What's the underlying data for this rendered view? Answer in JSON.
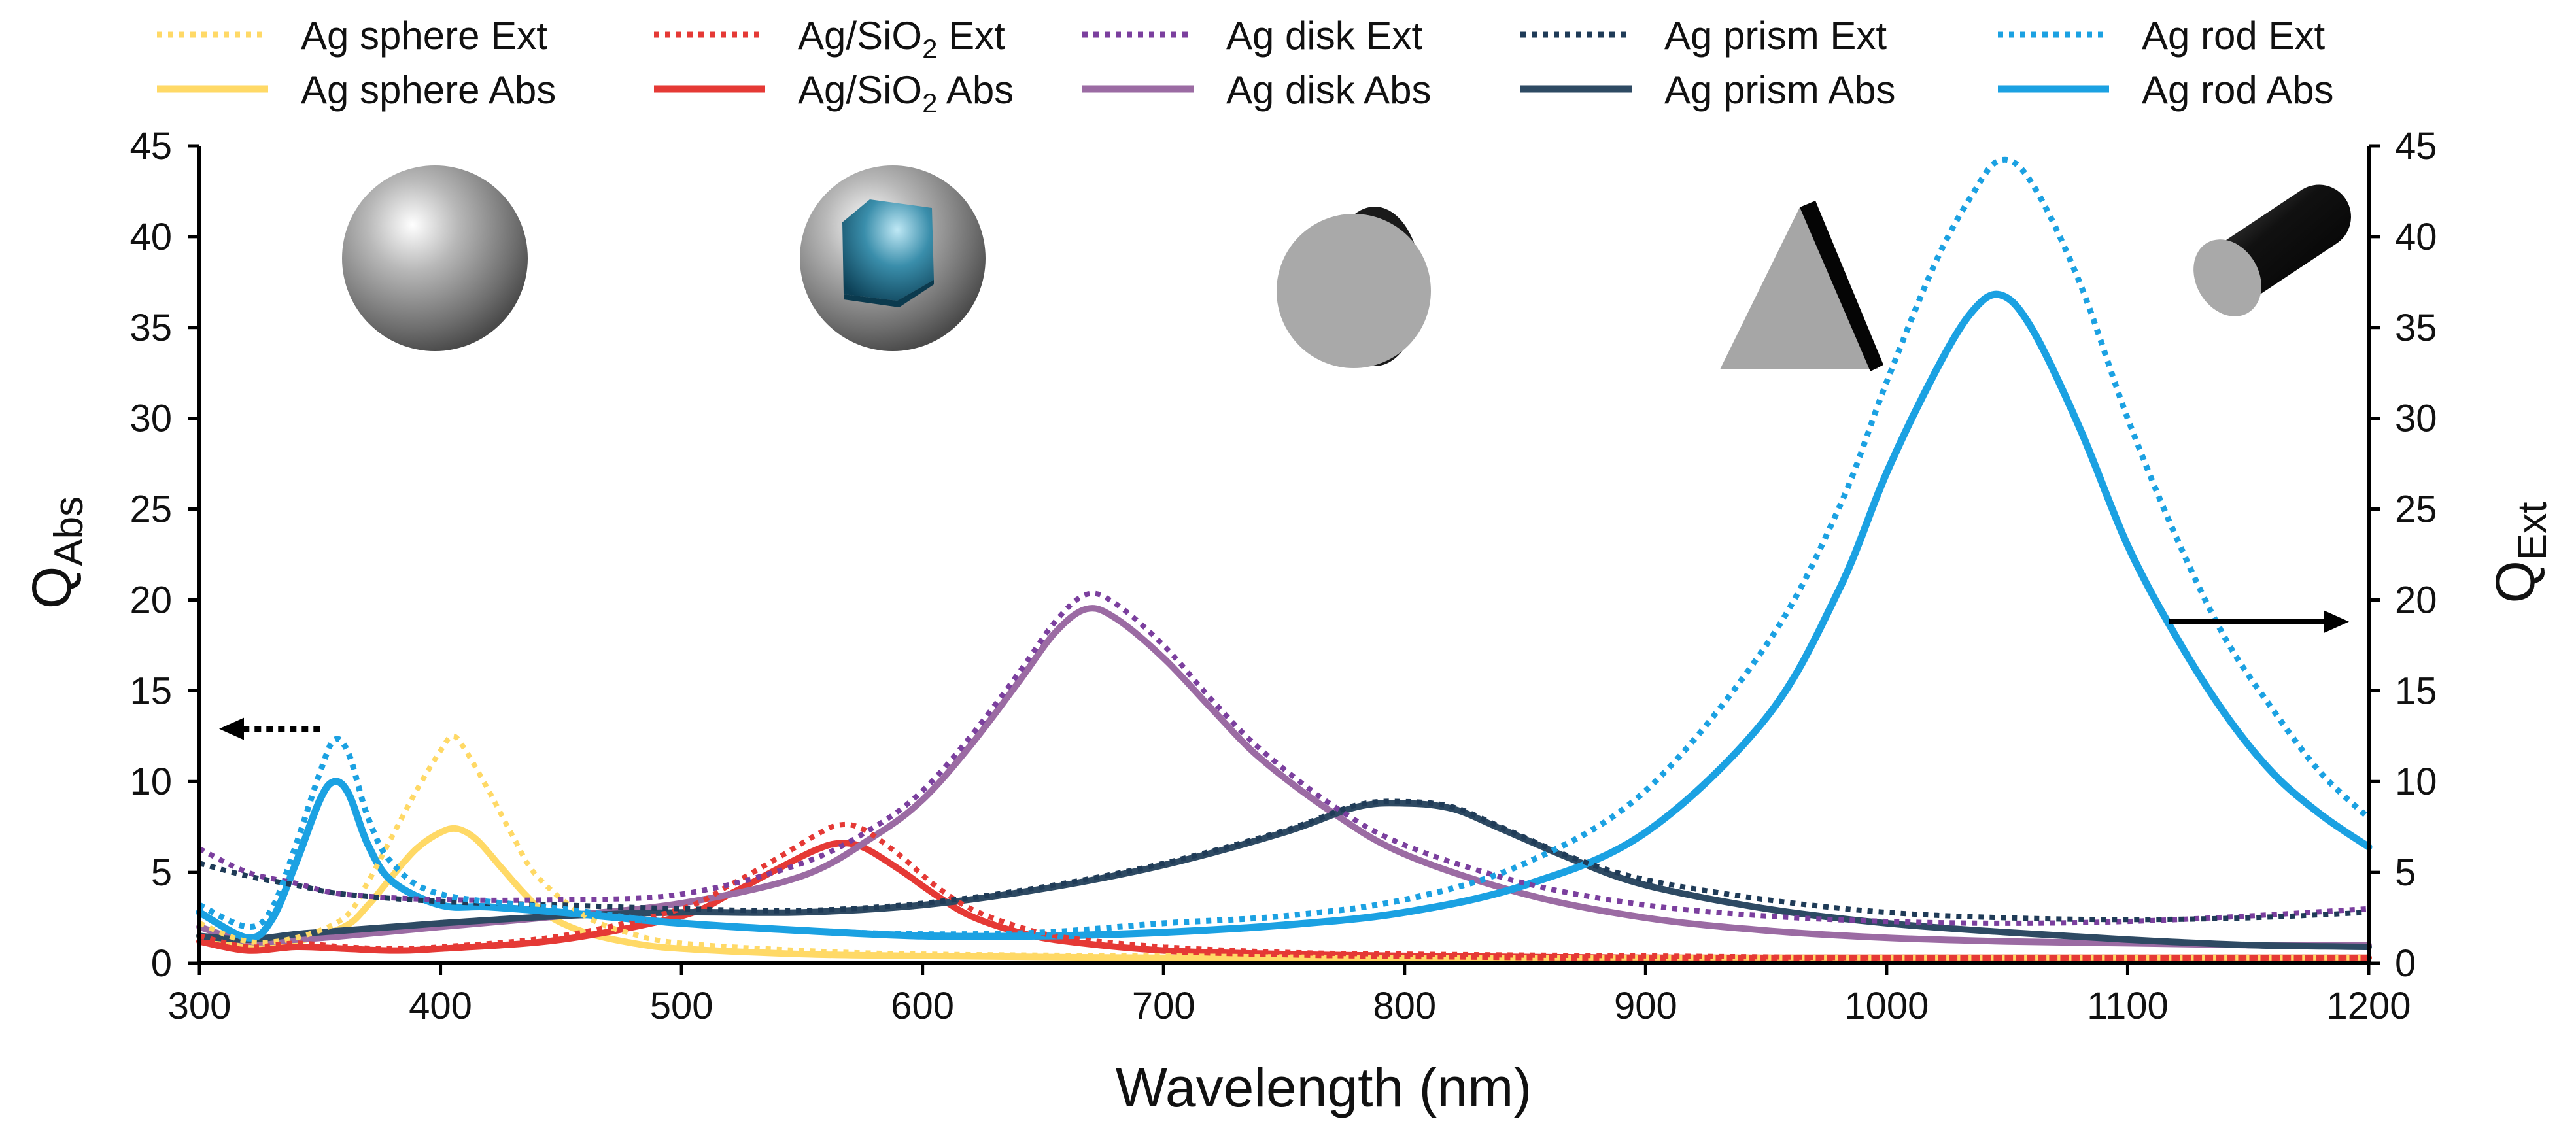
{
  "chart_data": {
    "type": "line",
    "xlabel": "Wavelength (nm)",
    "ylabel_left": {
      "main": "Q",
      "sub": "Abs"
    },
    "ylabel_right": {
      "main": "Q",
      "sub": "Ext"
    },
    "xlim": [
      300,
      1200
    ],
    "ylim": [
      0,
      45
    ],
    "xticks": [
      300,
      400,
      500,
      600,
      700,
      800,
      900,
      1000,
      1100,
      1200
    ],
    "yticks": [
      0,
      5,
      10,
      15,
      20,
      25,
      30,
      35,
      40,
      45
    ],
    "xtick_labels": [
      "300",
      "400",
      "500",
      "600",
      "700",
      "800",
      "900",
      "1000",
      "1100",
      "1200"
    ],
    "ytick_labels": [
      "0",
      "5",
      "10",
      "15",
      "20",
      "25",
      "30",
      "35",
      "40",
      "45"
    ],
    "legend": [
      {
        "id": "sphere_ext",
        "pre": "Ag sphere Ext",
        "sub": "",
        "post": ""
      },
      {
        "id": "sio2_ext",
        "pre": "Ag/SiO",
        "sub": "2",
        "post": " Ext"
      },
      {
        "id": "disk_ext",
        "pre": "Ag disk Ext",
        "sub": "",
        "post": ""
      },
      {
        "id": "prism_ext",
        "pre": "Ag prism Ext",
        "sub": "",
        "post": ""
      },
      {
        "id": "rod_ext",
        "pre": "Ag rod Ext",
        "sub": "",
        "post": ""
      },
      {
        "id": "sphere_abs",
        "pre": "Ag sphere Abs",
        "sub": "",
        "post": ""
      },
      {
        "id": "sio2_abs",
        "pre": "Ag/SiO",
        "sub": "2",
        "post": " Abs"
      },
      {
        "id": "disk_abs",
        "pre": "Ag disk Abs",
        "sub": "",
        "post": ""
      },
      {
        "id": "prism_abs",
        "pre": "Ag prism Abs",
        "sub": "",
        "post": ""
      },
      {
        "id": "rod_abs",
        "pre": "Ag rod Abs",
        "sub": "",
        "post": ""
      }
    ],
    "annotations": {
      "left_arrow": {
        "from": [
          350,
          12.9
        ],
        "to": [
          300,
          12.9
        ],
        "label": "points to left axis (Q_Abs)"
      },
      "right_arrow": {
        "from": [
          1117,
          18.8
        ],
        "to": [
          1200,
          18.8
        ],
        "label": "points to right axis (Q_Ext)"
      }
    },
    "shape_icons": [
      "sphere",
      "core-shell",
      "disk",
      "prism",
      "rod"
    ],
    "series": [
      {
        "id": "sphere_ext",
        "name": "Ag sphere Ext",
        "color": "#FFD966",
        "style": "dotted",
        "width": 8,
        "x": [
          300,
          320,
          340,
          360,
          370,
          380,
          390,
          400,
          405,
          410,
          420,
          430,
          440,
          460,
          480,
          500,
          550,
          600,
          700,
          800,
          900,
          1000,
          1100,
          1200
        ],
        "y": [
          2.2,
          1.2,
          1.4,
          2.5,
          4.5,
          7.0,
          9.5,
          11.7,
          12.5,
          11.8,
          9.5,
          7.0,
          4.8,
          2.6,
          1.6,
          1.1,
          0.7,
          0.5,
          0.4,
          0.3,
          0.3,
          0.3,
          0.3,
          0.3
        ]
      },
      {
        "id": "sphere_abs",
        "name": "Ag sphere Abs",
        "color": "#FFD966",
        "style": "solid",
        "width": 10,
        "x": [
          300,
          320,
          340,
          360,
          370,
          380,
          390,
          400,
          407,
          415,
          425,
          435,
          445,
          460,
          480,
          500,
          550,
          600,
          700,
          800,
          900,
          1000,
          1100,
          1200
        ],
        "y": [
          1.5,
          1.0,
          1.2,
          2.0,
          3.2,
          4.8,
          6.3,
          7.2,
          7.4,
          6.8,
          5.3,
          3.8,
          2.6,
          1.7,
          1.1,
          0.8,
          0.5,
          0.4,
          0.3,
          0.3,
          0.3,
          0.3,
          0.3,
          0.3
        ]
      },
      {
        "id": "sio2_ext",
        "name": "Ag/SiO2 Ext",
        "color": "#E53935",
        "style": "dotted",
        "width": 8,
        "x": [
          300,
          320,
          340,
          360,
          380,
          400,
          450,
          500,
          520,
          540,
          555,
          565,
          575,
          590,
          605,
          620,
          640,
          660,
          700,
          750,
          800,
          900,
          1000,
          1100,
          1200
        ],
        "y": [
          1.5,
          0.9,
          1.1,
          0.9,
          0.8,
          0.9,
          1.5,
          3.0,
          4.3,
          5.8,
          7.0,
          7.6,
          7.4,
          6.0,
          4.3,
          3.0,
          2.0,
          1.4,
          0.9,
          0.6,
          0.5,
          0.4,
          0.3,
          0.3,
          0.3
        ]
      },
      {
        "id": "sio2_abs",
        "name": "Ag/SiO2 Abs",
        "color": "#E53935",
        "style": "solid",
        "width": 10,
        "x": [
          300,
          320,
          340,
          360,
          380,
          400,
          450,
          500,
          520,
          540,
          555,
          565,
          575,
          590,
          605,
          620,
          640,
          660,
          700,
          750,
          800,
          900,
          1000,
          1100,
          1200
        ],
        "y": [
          1.2,
          0.7,
          0.9,
          0.8,
          0.7,
          0.8,
          1.3,
          2.6,
          3.8,
          5.2,
          6.2,
          6.6,
          6.4,
          5.2,
          3.8,
          2.6,
          1.7,
          1.2,
          0.7,
          0.5,
          0.4,
          0.3,
          0.3,
          0.3,
          0.3
        ]
      },
      {
        "id": "disk_ext",
        "name": "Ag disk Ext",
        "color": "#7B3F9E",
        "style": "dotted",
        "width": 8,
        "x": [
          300,
          320,
          340,
          360,
          400,
          450,
          500,
          550,
          580,
          600,
          620,
          640,
          655,
          668,
          680,
          700,
          720,
          740,
          770,
          800,
          850,
          900,
          950,
          1000,
          1050,
          1100,
          1150,
          1200
        ],
        "y": [
          6.3,
          5.0,
          4.4,
          3.8,
          3.5,
          3.5,
          3.8,
          5.5,
          7.5,
          9.5,
          12.5,
          16.0,
          18.8,
          20.3,
          19.8,
          17.5,
          14.5,
          11.8,
          8.7,
          6.5,
          4.4,
          3.2,
          2.6,
          2.3,
          2.2,
          2.3,
          2.6,
          3.0
        ]
      },
      {
        "id": "disk_abs",
        "name": "Ag disk Abs",
        "color": "#9B6BA3",
        "style": "solid",
        "width": 10,
        "x": [
          300,
          320,
          340,
          360,
          400,
          450,
          500,
          550,
          580,
          600,
          620,
          640,
          655,
          668,
          680,
          700,
          720,
          740,
          770,
          800,
          850,
          900,
          950,
          1000,
          1050,
          1100,
          1150,
          1200
        ],
        "y": [
          2.0,
          1.2,
          1.3,
          1.5,
          2.0,
          2.6,
          3.3,
          4.8,
          7.0,
          9.0,
          12.0,
          15.5,
          18.2,
          19.5,
          19.0,
          16.8,
          14.0,
          11.3,
          8.3,
          6.0,
          3.8,
          2.5,
          1.8,
          1.4,
          1.2,
          1.1,
          1.0,
          1.0
        ]
      },
      {
        "id": "prism_ext",
        "name": "Ag prism Ext",
        "color": "#1F3B57",
        "style": "dotted",
        "width": 8,
        "x": [
          300,
          320,
          340,
          360,
          400,
          450,
          500,
          550,
          600,
          650,
          700,
          750,
          780,
          800,
          820,
          840,
          870,
          900,
          950,
          1000,
          1050,
          1100,
          1150,
          1200
        ],
        "y": [
          5.5,
          4.8,
          4.3,
          3.8,
          3.4,
          3.2,
          3.0,
          2.9,
          3.3,
          4.2,
          5.5,
          7.3,
          8.7,
          8.9,
          8.6,
          7.5,
          5.8,
          4.6,
          3.5,
          2.8,
          2.5,
          2.4,
          2.5,
          2.8
        ]
      },
      {
        "id": "prism_abs",
        "name": "Ag prism Abs",
        "color": "#2E4A63",
        "style": "solid",
        "width": 10,
        "x": [
          300,
          320,
          340,
          360,
          400,
          450,
          500,
          550,
          600,
          650,
          700,
          750,
          780,
          800,
          820,
          840,
          870,
          900,
          950,
          1000,
          1050,
          1100,
          1150,
          1200
        ],
        "y": [
          1.5,
          1.3,
          1.6,
          1.8,
          2.2,
          2.6,
          2.8,
          2.8,
          3.2,
          4.1,
          5.4,
          7.2,
          8.6,
          8.8,
          8.5,
          7.4,
          5.7,
          4.3,
          3.0,
          2.2,
          1.7,
          1.3,
          1.0,
          0.9
        ]
      },
      {
        "id": "rod_ext",
        "name": "Ag rod Ext",
        "color": "#1BA1E2",
        "style": "dotted",
        "width": 9,
        "x": [
          300,
          320,
          330,
          340,
          350,
          356,
          362,
          370,
          380,
          400,
          450,
          500,
          550,
          600,
          650,
          700,
          750,
          800,
          850,
          900,
          950,
          980,
          1000,
          1020,
          1035,
          1047,
          1060,
          1080,
          1100,
          1120,
          1140,
          1160,
          1180,
          1200
        ],
        "y": [
          3.2,
          2.0,
          3.0,
          6.5,
          10.5,
          12.3,
          11.5,
          8.0,
          5.5,
          3.8,
          3.0,
          2.2,
          1.8,
          1.6,
          1.7,
          2.2,
          2.6,
          3.5,
          5.5,
          9.5,
          17.5,
          25.0,
          32.0,
          38.5,
          42.2,
          44.2,
          43.0,
          37.5,
          30.0,
          23.5,
          18.0,
          14.0,
          10.5,
          8.0
        ]
      },
      {
        "id": "rod_abs",
        "name": "Ag rod Abs",
        "color": "#1BA1E2",
        "style": "solid",
        "width": 11,
        "x": [
          300,
          320,
          330,
          340,
          350,
          356,
          362,
          370,
          380,
          400,
          420,
          450,
          500,
          550,
          600,
          650,
          700,
          750,
          800,
          850,
          900,
          950,
          980,
          1000,
          1020,
          1035,
          1047,
          1060,
          1080,
          1100,
          1120,
          1140,
          1160,
          1180,
          1200
        ],
        "y": [
          2.8,
          1.4,
          2.4,
          5.5,
          9.0,
          10.0,
          9.3,
          6.5,
          4.5,
          3.2,
          3.1,
          2.8,
          2.2,
          1.8,
          1.5,
          1.5,
          1.7,
          2.1,
          2.8,
          4.3,
          7.2,
          13.5,
          20.5,
          27.0,
          32.5,
          35.8,
          36.8,
          35.0,
          29.5,
          23.0,
          18.0,
          13.8,
          10.5,
          8.2,
          6.4
        ]
      }
    ]
  }
}
